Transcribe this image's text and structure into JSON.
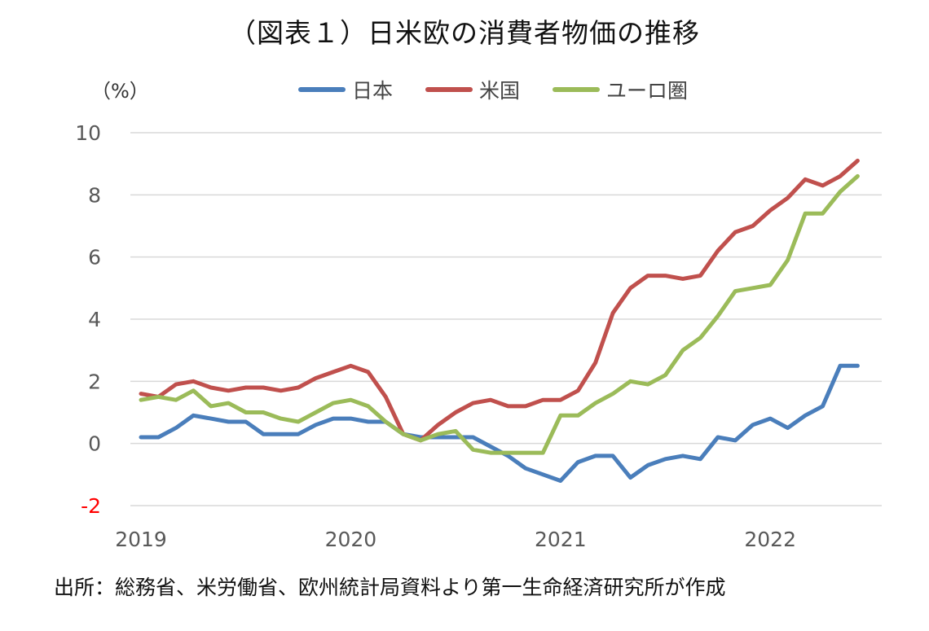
{
  "title": "（図表１）日米欧の消費者物価の推移",
  "unit_label": "（%）",
  "source": "出所：総務省、米労働省、欧州統計局資料より第一生命経済研究所が作成",
  "chart_data": {
    "type": "line",
    "title": "（図表１）日米欧の消費者物価の推移",
    "ylabel": "（%）",
    "xlabel": "",
    "ylim": [
      -2,
      10
    ],
    "yticks": [
      {
        "value": 10,
        "label": "10",
        "color": "#595959"
      },
      {
        "value": 8,
        "label": "8",
        "color": "#595959"
      },
      {
        "value": 6,
        "label": "6",
        "color": "#595959"
      },
      {
        "value": 4,
        "label": "4",
        "color": "#595959"
      },
      {
        "value": 2,
        "label": "2",
        "color": "#595959"
      },
      {
        "value": 0,
        "label": "0",
        "color": "#595959"
      },
      {
        "value": -2,
        "label": "-2",
        "color": "#ff0000"
      }
    ],
    "xticks": [
      {
        "index": 0,
        "label": "2019"
      },
      {
        "index": 12,
        "label": "2020"
      },
      {
        "index": 24,
        "label": "2021"
      },
      {
        "index": 36,
        "label": "2022"
      }
    ],
    "x_count": 43,
    "grid": true,
    "legend_position": "top",
    "series": [
      {
        "name": "日本",
        "color": "#4a7ebb",
        "values": [
          0.2,
          0.2,
          0.5,
          0.9,
          0.8,
          0.7,
          0.7,
          0.3,
          0.3,
          0.3,
          0.6,
          0.8,
          0.8,
          0.7,
          0.7,
          0.3,
          0.2,
          0.2,
          0.2,
          0.2,
          -0.1,
          -0.4,
          -0.8,
          -1.0,
          -1.2,
          -0.6,
          -0.4,
          -0.4,
          -1.1,
          -0.7,
          -0.5,
          -0.4,
          -0.5,
          0.2,
          0.1,
          0.6,
          0.8,
          0.5,
          0.9,
          1.2,
          2.5,
          2.5,
          null
        ]
      },
      {
        "name": "米国",
        "color": "#c0504d",
        "values": [
          1.6,
          1.5,
          1.9,
          2.0,
          1.8,
          1.7,
          1.8,
          1.8,
          1.7,
          1.8,
          2.1,
          2.3,
          2.5,
          2.3,
          1.5,
          0.3,
          0.1,
          0.6,
          1.0,
          1.3,
          1.4,
          1.2,
          1.2,
          1.4,
          1.4,
          1.7,
          2.6,
          4.2,
          5.0,
          5.4,
          5.4,
          5.3,
          5.4,
          6.2,
          6.8,
          7.0,
          7.5,
          7.9,
          8.5,
          8.3,
          8.6,
          9.1,
          null
        ]
      },
      {
        "name": "ユーロ圏",
        "color": "#9bbb59",
        "values": [
          1.4,
          1.5,
          1.4,
          1.7,
          1.2,
          1.3,
          1.0,
          1.0,
          0.8,
          0.7,
          1.0,
          1.3,
          1.4,
          1.2,
          0.7,
          0.3,
          0.1,
          0.3,
          0.4,
          -0.2,
          -0.3,
          -0.3,
          -0.3,
          -0.3,
          0.9,
          0.9,
          1.3,
          1.6,
          2.0,
          1.9,
          2.2,
          3.0,
          3.4,
          4.1,
          4.9,
          5.0,
          5.1,
          5.9,
          7.4,
          7.4,
          8.1,
          8.6,
          null
        ]
      }
    ]
  }
}
